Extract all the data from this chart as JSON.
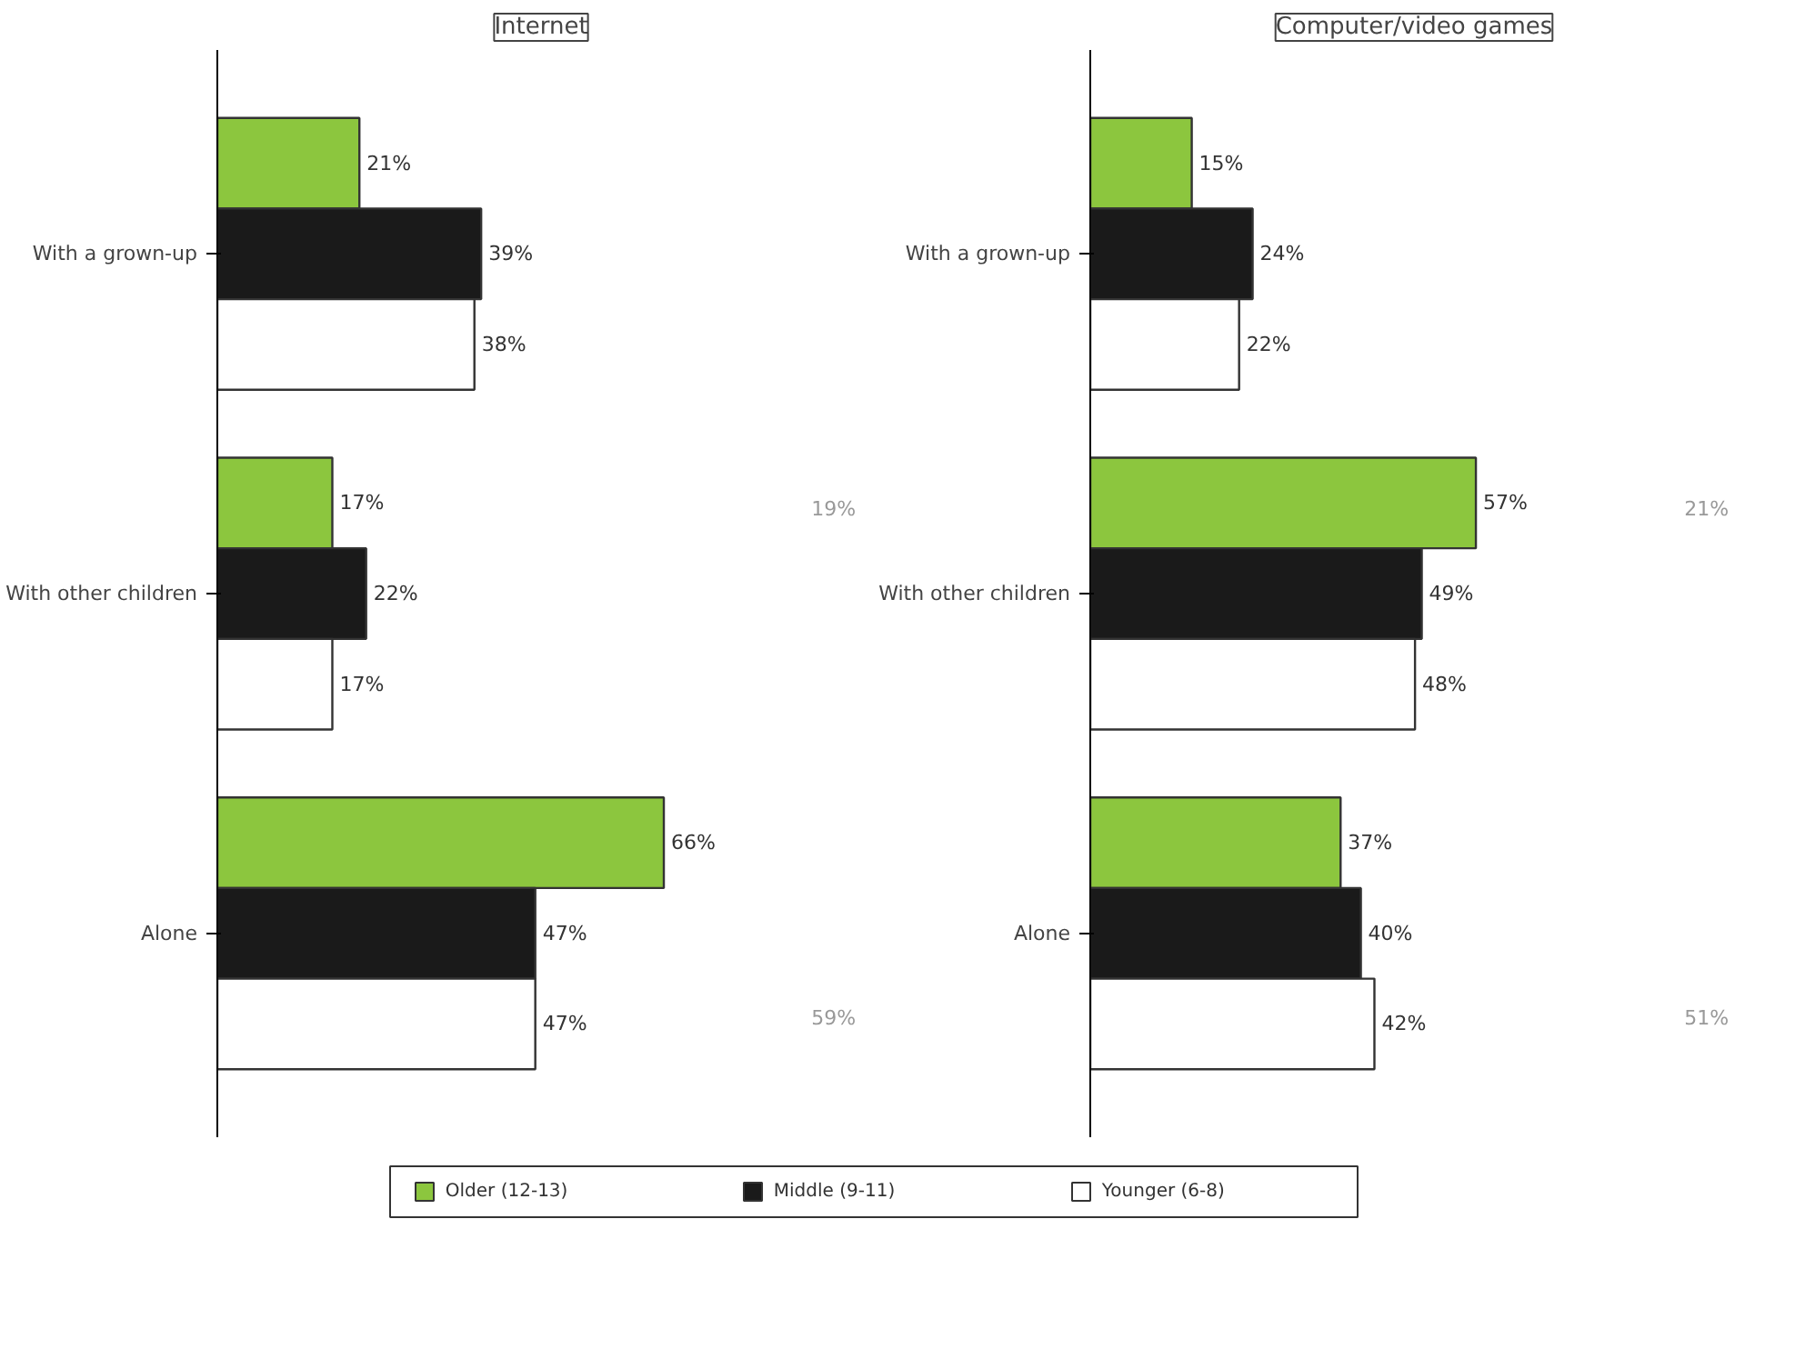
{
  "chart_data": [
    {
      "type": "bar",
      "orientation": "horizontal",
      "title": "Internet",
      "categories": [
        "With a grown-up",
        "With other children",
        "Alone"
      ],
      "series": [
        {
          "name": "Older (12-13)",
          "color": "#8cc63e",
          "values": [
            21,
            17,
            66
          ],
          "value_labels": [
            "21%",
            "17%",
            "66%"
          ]
        },
        {
          "name": "Middle (9-11)",
          "color": "#1a1a1a",
          "values": [
            39,
            22,
            47
          ],
          "value_labels": [
            "39%",
            "22%",
            "47%"
          ]
        },
        {
          "name": "Younger (6-8)",
          "color": "#ffffff",
          "values": [
            38,
            17,
            47
          ],
          "value_labels": [
            "38%",
            "17%",
            "47%"
          ]
        }
      ],
      "legend": "bottom",
      "annotations": [
        "19%",
        "59%"
      ]
    },
    {
      "type": "bar",
      "orientation": "horizontal",
      "title": "Computer/video games",
      "categories": [
        "With a grown-up",
        "With other children",
        "Alone"
      ],
      "series": [
        {
          "color": "#8cc63e",
          "values": [
            15,
            57,
            37
          ],
          "value_labels": [
            "15%",
            "57%",
            "37%"
          ]
        },
        {
          "color": "#1a1a1a",
          "values": [
            24,
            49,
            40
          ],
          "value_labels": [
            "24%",
            "49%",
            "40%"
          ]
        },
        {
          "color": "#ffffff",
          "values": [
            22,
            48,
            42
          ],
          "value_labels": [
            "22%",
            "48%",
            "42%"
          ]
        }
      ],
      "annotations": [
        "21%",
        "51%"
      ]
    }
  ]
}
